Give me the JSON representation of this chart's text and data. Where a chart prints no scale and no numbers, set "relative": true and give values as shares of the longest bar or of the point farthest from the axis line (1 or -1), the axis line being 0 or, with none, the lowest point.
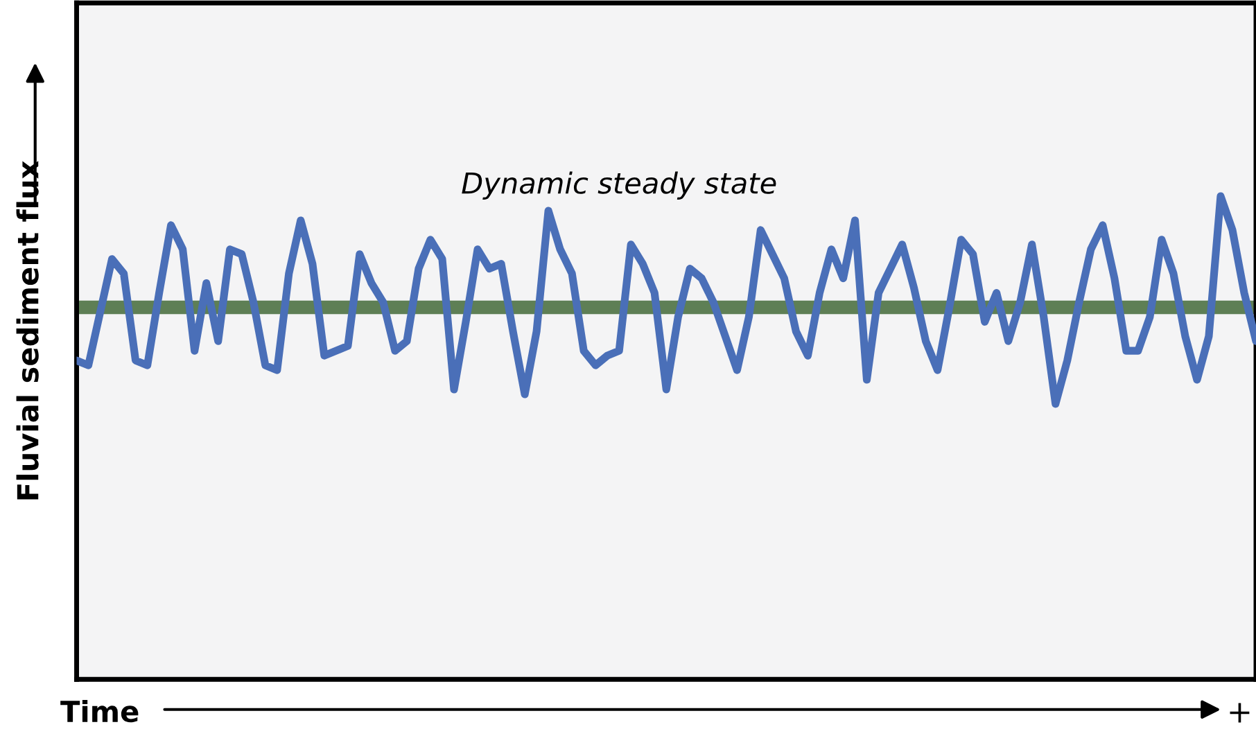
{
  "chart_data": {
    "type": "line",
    "relative": true,
    "xlabel": "Time",
    "ylabel": "Fluvial sediment flux",
    "annotations": [
      "Dynamic steady state",
      "+"
    ],
    "categories": [
      null,
      null,
      null,
      null,
      null,
      null,
      null,
      null,
      null,
      null,
      null,
      null,
      null,
      null,
      null,
      null,
      null,
      null,
      null,
      null,
      null,
      null,
      null,
      null,
      null,
      null,
      null,
      null,
      null,
      null,
      null,
      null,
      null,
      null,
      null,
      null,
      null,
      null,
      null,
      null,
      null,
      null,
      null,
      null,
      null,
      null,
      null,
      null,
      null,
      null,
      null,
      null,
      null,
      null,
      null,
      null,
      null,
      null,
      null,
      null,
      null,
      null,
      null,
      null,
      null,
      null,
      null,
      null,
      null,
      null,
      null,
      null,
      null,
      null,
      null,
      null,
      null,
      null,
      null,
      null,
      null,
      null,
      null,
      null,
      null,
      null,
      null,
      null,
      null,
      null,
      null,
      null,
      null,
      null,
      null,
      null,
      null,
      null,
      null,
      null,
      null
    ],
    "legend": false,
    "marker": "none",
    "line_style": "solid",
    "series": [
      {
        "color": "#4a6fb8",
        "values": [
          0.66,
          0.65,
          0.76,
          0.87,
          0.84,
          0.66,
          0.65,
          0.8,
          0.94,
          0.89,
          0.68,
          0.82,
          0.7,
          0.89,
          0.88,
          0.78,
          0.65,
          0.64,
          0.84,
          0.95,
          0.86,
          0.67,
          0.68,
          0.69,
          0.88,
          0.82,
          0.78,
          0.68,
          0.7,
          0.85,
          0.91,
          0.87,
          0.6,
          0.74,
          0.89,
          0.85,
          0.86,
          0.72,
          0.59,
          0.72,
          0.97,
          0.89,
          0.84,
          0.68,
          0.65,
          0.67,
          0.68,
          0.9,
          0.86,
          0.8,
          0.6,
          0.75,
          0.85,
          0.83,
          0.78,
          0.71,
          0.64,
          0.75,
          0.93,
          0.88,
          0.83,
          0.72,
          0.67,
          0.8,
          0.89,
          0.83,
          0.95,
          0.62,
          0.8,
          0.85,
          0.9,
          0.81,
          0.7,
          0.64,
          0.77,
          0.91,
          0.88,
          0.74,
          0.8,
          0.7,
          0.78,
          0.9,
          0.75,
          0.57,
          0.66,
          0.78,
          0.89,
          0.94,
          0.83,
          0.68,
          0.68,
          0.75,
          0.91,
          0.84,
          0.71,
          0.62,
          0.71,
          1,
          0.93,
          0.8,
          0.7
        ]
      }
    ],
    "ref_lines": [
      {
        "axis": "y",
        "value": 0.77,
        "color": "#5e7f55"
      }
    ]
  }
}
